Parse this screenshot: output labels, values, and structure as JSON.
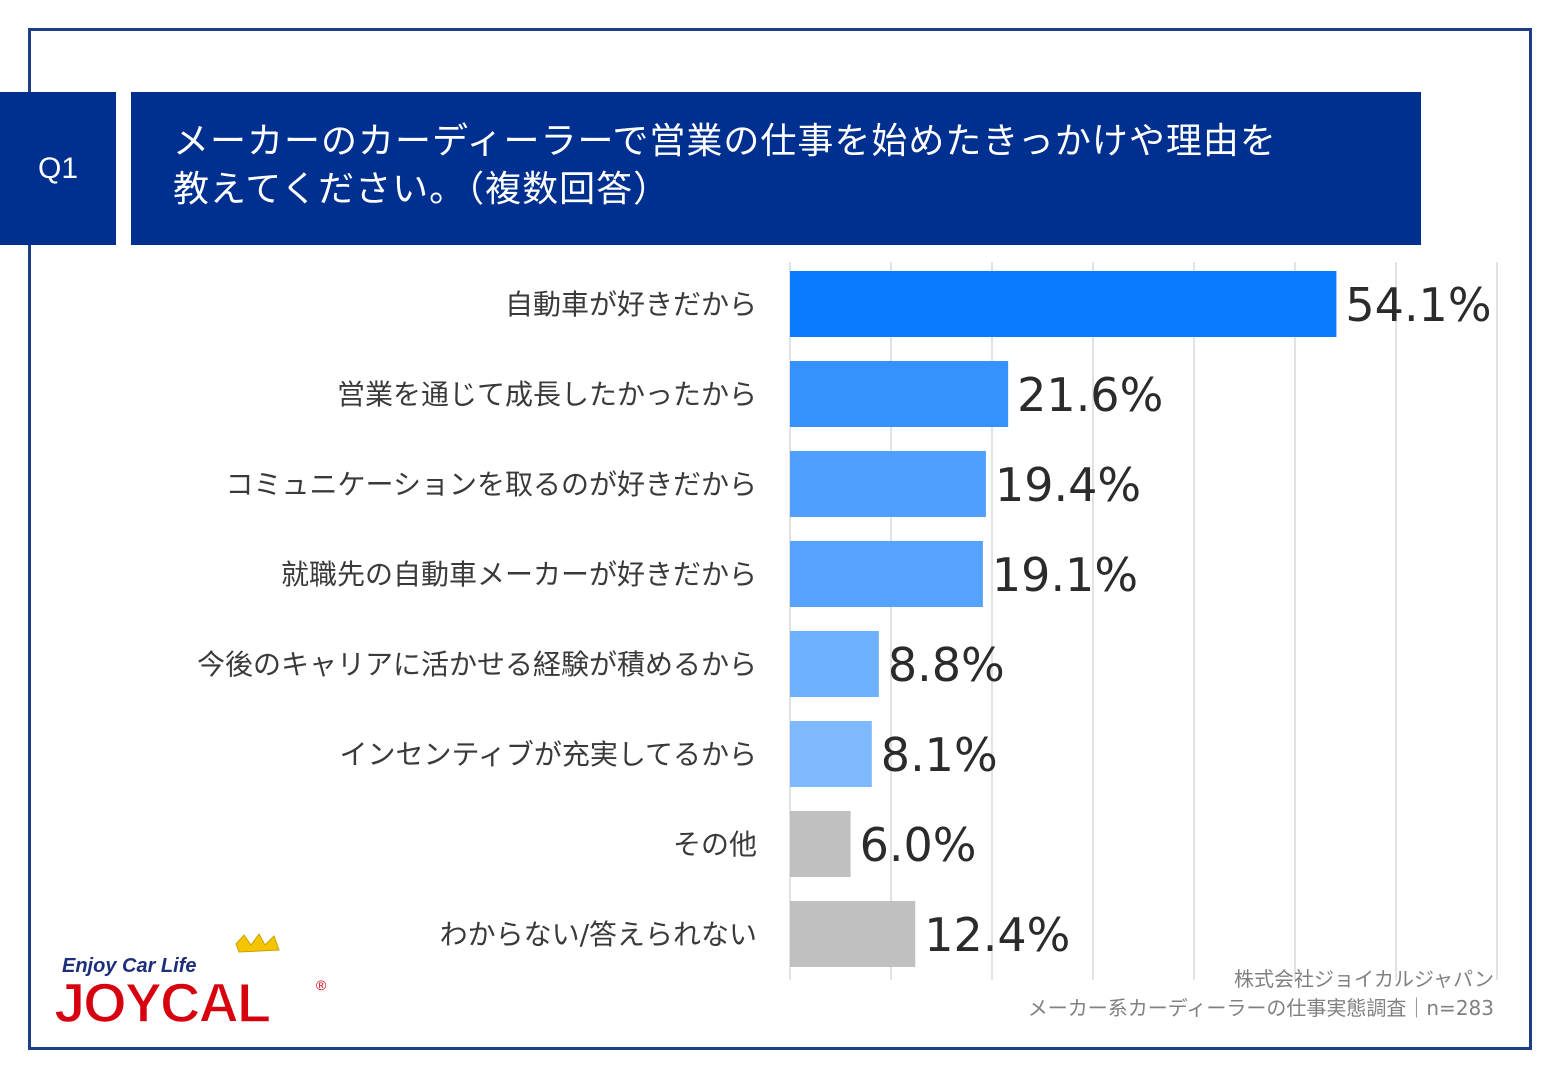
{
  "question": {
    "number": "Q1",
    "title_line1": "メーカーのカーディーラーで営業の仕事を始めたきっかけや理由を",
    "title_line2": "教えてください。（複数回答）"
  },
  "chart_data": {
    "type": "bar",
    "orientation": "horizontal",
    "title": "メーカーのカーディーラーで営業の仕事を始めたきっかけや理由を教えてください。（複数回答）",
    "xlabel": "",
    "ylabel": "",
    "xlim": [
      0,
      70
    ],
    "grid": true,
    "categories": [
      "自動車が好きだから",
      "営業を通じて成長したかったから",
      "コミュニケーションを取るのが好きだから",
      "就職先の自動車メーカーが好きだから",
      "今後のキャリアに活かせる経験が積めるから",
      "インセンティブが充実してるから",
      "その他",
      "わからない/答えられない"
    ],
    "values": [
      54.1,
      21.6,
      19.4,
      19.1,
      8.8,
      8.1,
      6.0,
      12.4
    ],
    "value_labels": [
      "54.1%",
      "21.6%",
      "19.4%",
      "19.1%",
      "8.8%",
      "8.1%",
      "6.0%",
      "12.4%"
    ],
    "colors": [
      "#0a7bff",
      "#3592fd",
      "#4fa0fe",
      "#55a3fe",
      "#6cb0fe",
      "#7eb9fe",
      "#c0c0c0",
      "#c0c0c0"
    ]
  },
  "credit": {
    "line1": "株式会社ジョイカルジャパン",
    "line2": "メーカー系カーディーラーの仕事実態調査｜n=283"
  },
  "logo": {
    "tagline": "Enjoy Car Life",
    "wordmark": "JOYCAL",
    "registered": "®"
  },
  "colors": {
    "brand_navy": "#00308f",
    "frame": "#1c3f86",
    "logo_red": "#d7000f",
    "crown_yellow": "#f5c400"
  }
}
